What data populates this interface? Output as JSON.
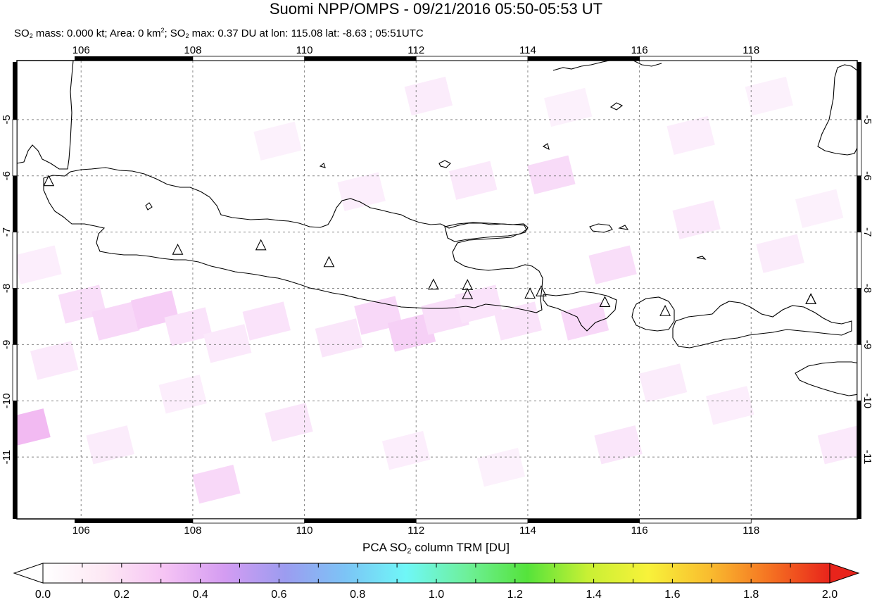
{
  "header": {
    "title": "Suomi NPP/OMPS - 09/21/2016 05:50-05:53 UT",
    "subtitle": {
      "part1": "SO",
      "sub1": "2",
      "part2": " mass: 0.000 kt; Area: 0 km",
      "sup1": "2",
      "part3": "; SO",
      "sub2": "2",
      "part4": " max: 0.37 DU at lon: 115.08 lat: -8.63 ; 05:51UTC"
    }
  },
  "map": {
    "lon_range": [
      104.85,
      119.9
    ],
    "lat_range": [
      -12.1,
      -3.95
    ],
    "lon_ticks": [
      "106",
      "108",
      "110",
      "112",
      "114",
      "116",
      "118"
    ],
    "lat_ticks": [
      "-5",
      "-6",
      "-7",
      "-8",
      "-9",
      "-10",
      "-11"
    ],
    "grid": true,
    "volcano_marker": "triangle-outline",
    "volcanoes": [
      {
        "lon": 105.42,
        "lat": -6.1
      },
      {
        "lon": 107.73,
        "lat": -7.32
      },
      {
        "lon": 109.22,
        "lat": -7.24
      },
      {
        "lon": 110.44,
        "lat": -7.54
      },
      {
        "lon": 112.31,
        "lat": -7.94
      },
      {
        "lon": 112.92,
        "lat": -7.95
      },
      {
        "lon": 112.92,
        "lat": -8.11
      },
      {
        "lon": 114.04,
        "lat": -8.1
      },
      {
        "lon": 114.24,
        "lat": -8.06
      },
      {
        "lon": 115.38,
        "lat": -8.25
      },
      {
        "lon": 116.46,
        "lat": -8.41
      },
      {
        "lon": 119.07,
        "lat": -8.2
      },
      {
        "lon": 119.07,
        "lat": -8.2
      }
    ],
    "so2_pixels": [
      {
        "lon": 105.0,
        "lat": -10.5,
        "v": 0.25
      },
      {
        "lon": 106.0,
        "lat": -8.3,
        "v": 0.12
      },
      {
        "lon": 106.6,
        "lat": -8.6,
        "v": 0.14
      },
      {
        "lon": 107.3,
        "lat": -8.4,
        "v": 0.18
      },
      {
        "lon": 107.9,
        "lat": -8.7,
        "v": 0.1
      },
      {
        "lon": 108.6,
        "lat": -9.0,
        "v": 0.08
      },
      {
        "lon": 109.3,
        "lat": -8.6,
        "v": 0.1
      },
      {
        "lon": 110.6,
        "lat": -8.9,
        "v": 0.09
      },
      {
        "lon": 111.3,
        "lat": -8.5,
        "v": 0.14
      },
      {
        "lon": 111.9,
        "lat": -8.8,
        "v": 0.17
      },
      {
        "lon": 112.5,
        "lat": -8.5,
        "v": 0.12
      },
      {
        "lon": 113.1,
        "lat": -8.3,
        "v": 0.1
      },
      {
        "lon": 113.8,
        "lat": -8.6,
        "v": 0.1
      },
      {
        "lon": 114.4,
        "lat": -6.0,
        "v": 0.13
      },
      {
        "lon": 115.0,
        "lat": -8.6,
        "v": 0.14
      },
      {
        "lon": 115.5,
        "lat": -7.6,
        "v": 0.12
      },
      {
        "lon": 113.0,
        "lat": -6.1,
        "v": 0.08
      },
      {
        "lon": 111.0,
        "lat": -6.3,
        "v": 0.06
      },
      {
        "lon": 109.5,
        "lat": -5.4,
        "v": 0.05
      },
      {
        "lon": 112.2,
        "lat": -4.6,
        "v": 0.07
      },
      {
        "lon": 117.0,
        "lat": -6.8,
        "v": 0.08
      },
      {
        "lon": 118.5,
        "lat": -7.4,
        "v": 0.07
      },
      {
        "lon": 116.4,
        "lat": -9.7,
        "v": 0.07
      },
      {
        "lon": 117.6,
        "lat": -10.1,
        "v": 0.06
      },
      {
        "lon": 119.6,
        "lat": -10.8,
        "v": 0.08
      },
      {
        "lon": 108.4,
        "lat": -11.5,
        "v": 0.14
      },
      {
        "lon": 109.7,
        "lat": -10.4,
        "v": 0.09
      },
      {
        "lon": 106.5,
        "lat": -10.8,
        "v": 0.07
      },
      {
        "lon": 107.8,
        "lat": -9.9,
        "v": 0.06
      },
      {
        "lon": 111.8,
        "lat": -10.9,
        "v": 0.06
      },
      {
        "lon": 113.5,
        "lat": -11.2,
        "v": 0.05
      },
      {
        "lon": 115.6,
        "lat": -10.8,
        "v": 0.09
      },
      {
        "lon": 105.5,
        "lat": -9.3,
        "v": 0.08
      },
      {
        "lon": 105.2,
        "lat": -7.6,
        "v": 0.06
      },
      {
        "lon": 114.7,
        "lat": -4.8,
        "v": 0.05
      },
      {
        "lon": 116.9,
        "lat": -5.3,
        "v": 0.06
      },
      {
        "lon": 118.3,
        "lat": -4.6,
        "v": 0.05
      },
      {
        "lon": 119.2,
        "lat": -6.6,
        "v": 0.05
      }
    ]
  },
  "colorbar": {
    "title": {
      "part1": "PCA SO",
      "sub": "2",
      "part2": " column TRM [DU]"
    },
    "ticks": [
      "0.0",
      "0.2",
      "0.4",
      "0.6",
      "0.8",
      "1.0",
      "1.2",
      "1.4",
      "1.6",
      "1.8",
      "2.0"
    ],
    "range": [
      0.0,
      2.0
    ],
    "colors": [
      "#ffffff",
      "#fde8f4",
      "#f6c4f4",
      "#d49cf2",
      "#9c9cf0",
      "#7cc4f6",
      "#6ff7f7",
      "#6ef09a",
      "#55e33b",
      "#c8f034",
      "#f8f23a",
      "#f9bd2f",
      "#f57322",
      "#e8241b"
    ]
  }
}
